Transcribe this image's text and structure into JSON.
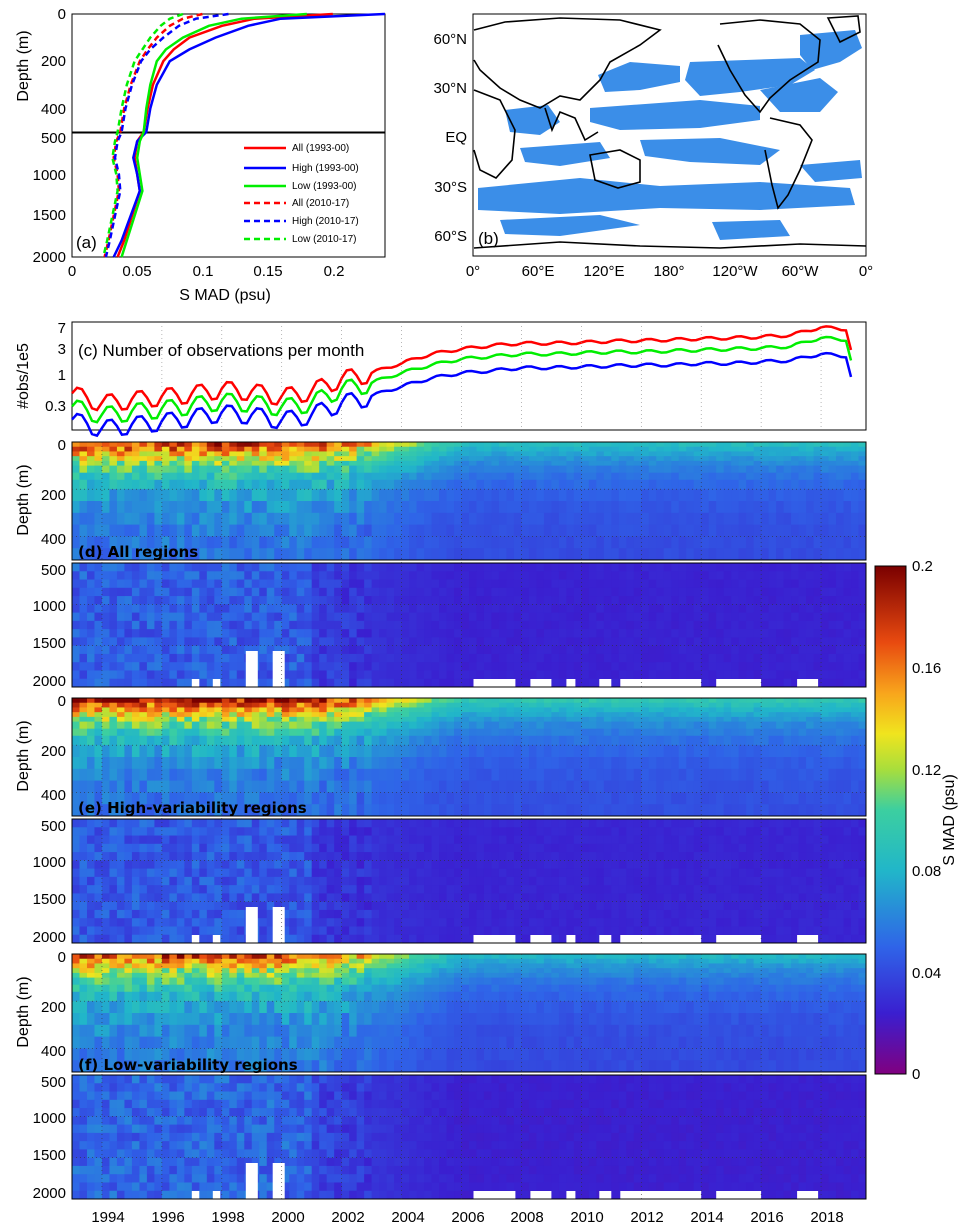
{
  "panel_a": {
    "label": "(a)",
    "xlabel": "S MAD (psu)",
    "ylabel": "Depth (m)",
    "xticks": [
      "0",
      "0.05",
      "0.1",
      "0.15",
      "0.2"
    ],
    "yticks_upper": [
      "0",
      "200",
      "400"
    ],
    "yticks_lower": [
      "500",
      "1000",
      "1500",
      "2000"
    ],
    "legend": [
      "All (1993-00)",
      "High (1993-00)",
      "Low (1993-00)",
      "All (2010-17)",
      "High (2010-17)",
      "Low (2010-17)"
    ]
  },
  "panel_b": {
    "label": "(b)",
    "lat_ticks": [
      "60°N",
      "30°N",
      "EQ",
      "30°S",
      "60°S"
    ],
    "lon_ticks": [
      "0°",
      "60°E",
      "120°E",
      "180°",
      "120°W",
      "60°W",
      "0°"
    ],
    "highlight_color": "#3b8ee8"
  },
  "panel_c": {
    "title": "(c) Number of observations per month",
    "ylabel": "#obs/1e5",
    "yticks": [
      "7",
      "3",
      "1",
      "0.3"
    ]
  },
  "panel_d": {
    "title": "(d) All regions"
  },
  "panel_e": {
    "title": "(e) High-variability regions"
  },
  "panel_f": {
    "title": "(f) Low-variability regions"
  },
  "heatmap_axes": {
    "ylabel": "Depth (m)",
    "yticks_upper": [
      "0",
      "200",
      "400"
    ],
    "yticks_lower": [
      "500",
      "1000",
      "1500",
      "2000"
    ],
    "xticks": [
      "1994",
      "1996",
      "1998",
      "2000",
      "2002",
      "2004",
      "2006",
      "2008",
      "2010",
      "2012",
      "2014",
      "2016",
      "2018"
    ]
  },
  "colorbar": {
    "label": "S MAD  (psu)",
    "ticks": [
      "0.2",
      "0.16",
      "0.12",
      "0.08",
      "0.04",
      "0"
    ],
    "colormap": "jet-like"
  },
  "chart_data": [
    {
      "type": "line",
      "title": "",
      "xlabel": "S MAD (psu)",
      "ylabel": "Depth (m)",
      "xlim": [
        0,
        0.24
      ],
      "ylim": [
        2000,
        0
      ],
      "series": [
        {
          "name": "All (1993-00)",
          "color": "#ff0000",
          "dash": false,
          "depth": [
            0,
            20,
            50,
            100,
            150,
            200,
            300,
            400,
            500,
            600,
            800,
            1000,
            1200,
            1500,
            1800,
            2000
          ],
          "values": [
            0.2,
            0.14,
            0.115,
            0.09,
            0.078,
            0.07,
            0.062,
            0.058,
            0.055,
            0.05,
            0.048,
            0.05,
            0.052,
            0.046,
            0.04,
            0.035
          ]
        },
        {
          "name": "High (1993-00)",
          "color": "#0000ff",
          "dash": false,
          "depth": [
            0,
            20,
            50,
            100,
            150,
            200,
            300,
            400,
            500,
            600,
            800,
            1000,
            1200,
            1500,
            1800,
            2000
          ],
          "values": [
            0.24,
            0.16,
            0.135,
            0.11,
            0.09,
            0.075,
            0.065,
            0.06,
            0.057,
            0.05,
            0.047,
            0.05,
            0.052,
            0.045,
            0.038,
            0.032
          ]
        },
        {
          "name": "Low (1993-00)",
          "color": "#00ee00",
          "dash": false,
          "depth": [
            0,
            20,
            50,
            100,
            150,
            200,
            300,
            400,
            500,
            600,
            800,
            1000,
            1200,
            1500,
            1800,
            2000
          ],
          "values": [
            0.18,
            0.13,
            0.105,
            0.085,
            0.072,
            0.065,
            0.06,
            0.057,
            0.055,
            0.052,
            0.05,
            0.052,
            0.054,
            0.048,
            0.042,
            0.038
          ]
        },
        {
          "name": "All (2010-17)",
          "color": "#ff0000",
          "dash": true,
          "depth": [
            0,
            20,
            50,
            100,
            150,
            200,
            300,
            400,
            500,
            600,
            800,
            1000,
            1200,
            1500,
            1800,
            2000
          ],
          "values": [
            0.1,
            0.085,
            0.075,
            0.065,
            0.058,
            0.052,
            0.045,
            0.04,
            0.037,
            0.034,
            0.032,
            0.035,
            0.036,
            0.032,
            0.028,
            0.025
          ]
        },
        {
          "name": "High (2010-17)",
          "color": "#0000ff",
          "dash": true,
          "depth": [
            0,
            20,
            50,
            100,
            150,
            200,
            300,
            400,
            500,
            600,
            800,
            1000,
            1200,
            1500,
            1800,
            2000
          ],
          "values": [
            0.12,
            0.095,
            0.082,
            0.07,
            0.06,
            0.053,
            0.046,
            0.041,
            0.038,
            0.035,
            0.033,
            0.036,
            0.037,
            0.033,
            0.029,
            0.026
          ]
        },
        {
          "name": "Low (2010-17)",
          "color": "#00ee00",
          "dash": true,
          "depth": [
            0,
            20,
            50,
            100,
            150,
            200,
            300,
            400,
            500,
            600,
            800,
            1000,
            1200,
            1500,
            1800,
            2000
          ],
          "values": [
            0.085,
            0.075,
            0.068,
            0.06,
            0.054,
            0.048,
            0.042,
            0.038,
            0.035,
            0.033,
            0.031,
            0.034,
            0.035,
            0.031,
            0.027,
            0.024
          ]
        }
      ]
    },
    {
      "type": "line",
      "title": "(c) Number of observations per month",
      "ylabel": "#obs/1e5",
      "yscale": "log",
      "ylim": [
        0.12,
        8
      ],
      "x": [
        1993,
        1994,
        1995,
        1996,
        1997,
        1998,
        1999,
        2000,
        2001,
        2002,
        2003,
        2004,
        2005,
        2006,
        2007,
        2008,
        2009,
        2010,
        2011,
        2012,
        2013,
        2014,
        2015,
        2016,
        2017,
        2018,
        2019
      ],
      "series": [
        {
          "name": "All",
          "color": "#ff0000",
          "values": [
            0.5,
            0.35,
            0.4,
            0.45,
            0.5,
            0.6,
            0.55,
            0.45,
            0.55,
            0.9,
            1.1,
            1.6,
            2.3,
            2.8,
            3.2,
            3.5,
            3.5,
            3.6,
            3.8,
            3.9,
            4.0,
            4.2,
            4.3,
            4.5,
            4.8,
            6.5,
            6.0
          ]
        },
        {
          "name": "Low",
          "color": "#00ee00",
          "values": [
            0.3,
            0.22,
            0.25,
            0.28,
            0.32,
            0.38,
            0.35,
            0.3,
            0.35,
            0.6,
            0.75,
            1.1,
            1.5,
            1.9,
            2.1,
            2.3,
            2.3,
            2.4,
            2.5,
            2.5,
            2.6,
            2.7,
            2.8,
            2.9,
            3.1,
            4.3,
            4.0
          ]
        },
        {
          "name": "High",
          "color": "#0000ff",
          "values": [
            0.18,
            0.13,
            0.15,
            0.17,
            0.2,
            0.24,
            0.22,
            0.18,
            0.22,
            0.35,
            0.45,
            0.65,
            0.9,
            1.1,
            1.2,
            1.35,
            1.35,
            1.4,
            1.45,
            1.5,
            1.5,
            1.6,
            1.6,
            1.7,
            1.8,
            2.3,
            2.1
          ]
        }
      ]
    },
    {
      "type": "heatmap",
      "title": "(d) All regions",
      "x_range": [
        1993,
        2019.5
      ],
      "depth_range": [
        0,
        2000
      ],
      "value_range": [
        0,
        0.2
      ],
      "decade_mean_0m": {
        "1993-2000": 0.19,
        "2010-2017": 0.09
      },
      "decade_mean_2000m": {
        "1993-2000": 0.035,
        "2010-2017": 0.025
      }
    },
    {
      "type": "heatmap",
      "title": "(e) High-variability regions",
      "x_range": [
        1993,
        2019.5
      ],
      "depth_range": [
        0,
        2000
      ],
      "value_range": [
        0,
        0.2
      ],
      "decade_mean_0m": {
        "1993-2000": 0.2,
        "2010-2017": 0.1
      },
      "decade_mean_2000m": {
        "1993-2000": 0.033,
        "2010-2017": 0.026
      }
    },
    {
      "type": "heatmap",
      "title": "(f) Low-variability regions",
      "x_range": [
        1993,
        2019.5
      ],
      "depth_range": [
        0,
        2000
      ],
      "value_range": [
        0,
        0.2
      ],
      "decade_mean_0m": {
        "1993-2000": 0.18,
        "2010-2017": 0.085
      },
      "decade_mean_2000m": {
        "1993-2000": 0.038,
        "2010-2017": 0.024
      }
    }
  ]
}
